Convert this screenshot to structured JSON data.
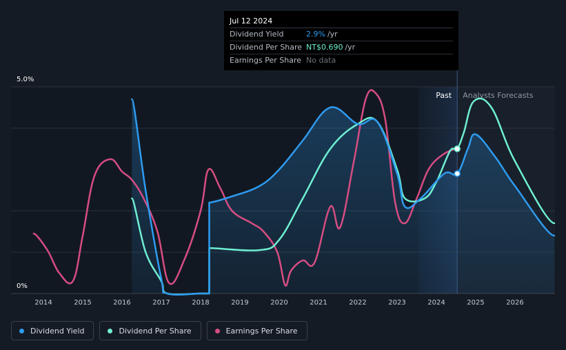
{
  "chart_data": {
    "type": "line",
    "title": "",
    "xlabel": "",
    "ylabel": "",
    "x_ticks": [
      "2014",
      "2015",
      "2016",
      "2017",
      "2018",
      "2019",
      "2020",
      "2021",
      "2022",
      "2023",
      "2024",
      "2025",
      "2026"
    ],
    "xlim": [
      2013.6,
      2027.0
    ],
    "y_ticks": [
      "0%",
      "5.0%"
    ],
    "ylim": [
      0,
      5.0
    ],
    "past_label": "Past",
    "forecast_label": "Analysts Forecasts",
    "forecast_start": 2024.53,
    "series": [
      {
        "name": "Dividend Yield",
        "color": "#2e9bf0",
        "x": [
          2016.25,
          2016.6,
          2017.0,
          2017.15,
          2018.0,
          2018.22,
          2018.22,
          2018.8,
          2019.5,
          2020.0,
          2020.6,
          2021.3,
          2022.0,
          2022.5,
          2023.0,
          2023.2,
          2023.6,
          2024.2,
          2024.53,
          2024.8,
          2025.0,
          2025.5,
          2026.0,
          2027.0
        ],
        "y": [
          4.7,
          2.5,
          0.35,
          0.0,
          0.0,
          0.0,
          2.2,
          2.35,
          2.6,
          3.0,
          3.7,
          4.5,
          4.1,
          4.15,
          2.9,
          2.1,
          2.3,
          2.9,
          2.9,
          3.5,
          3.85,
          3.3,
          2.6,
          1.4
        ]
      },
      {
        "name": "Dividend Per Share",
        "color": "#6ff0d2",
        "x": [
          2016.25,
          2016.6,
          2017.0,
          2017.15,
          2018.0,
          2018.22,
          2018.22,
          2019.5,
          2020.0,
          2020.6,
          2021.3,
          2022.0,
          2022.5,
          2023.0,
          2023.2,
          2023.7,
          2024.0,
          2024.35,
          2024.53,
          2024.7,
          2024.95,
          2025.4,
          2026.0,
          2027.0
        ],
        "y": [
          2.3,
          1.0,
          0.3,
          0.0,
          0.0,
          0.0,
          1.1,
          1.05,
          1.3,
          2.3,
          3.5,
          4.1,
          4.15,
          3.0,
          2.3,
          2.3,
          2.7,
          3.45,
          3.5,
          3.9,
          4.65,
          4.5,
          3.2,
          1.7
        ]
      },
      {
        "name": "Earnings Per Share",
        "color": "#d64d82",
        "x": [
          2013.75,
          2014.1,
          2014.4,
          2014.75,
          2015.0,
          2015.3,
          2015.7,
          2016.0,
          2016.25,
          2016.55,
          2016.9,
          2017.2,
          2017.6,
          2018.0,
          2018.2,
          2018.5,
          2018.8,
          2019.3,
          2019.6,
          2019.95,
          2020.15,
          2020.3,
          2020.6,
          2020.9,
          2021.3,
          2021.55,
          2021.9,
          2022.2,
          2022.45,
          2022.7,
          2022.95,
          2023.2,
          2023.5,
          2023.8,
          2024.15,
          2024.53
        ],
        "y": [
          1.45,
          1.05,
          0.5,
          0.3,
          1.4,
          2.85,
          3.25,
          2.95,
          2.75,
          2.3,
          1.5,
          0.25,
          0.85,
          2.0,
          3.0,
          2.55,
          2.0,
          1.7,
          1.5,
          1.0,
          0.2,
          0.55,
          0.8,
          0.75,
          2.1,
          1.6,
          3.2,
          4.7,
          4.85,
          4.2,
          2.2,
          1.7,
          2.3,
          3.0,
          3.35,
          3.5
        ]
      }
    ],
    "tooltip": {
      "date": "Jul 12 2024",
      "rows": [
        {
          "label": "Dividend Yield",
          "value": "2.9%",
          "unit": "/yr"
        },
        {
          "label": "Dividend Per Share",
          "value": "NT$0.690",
          "unit": "/yr"
        },
        {
          "label": "Earnings Per Share",
          "value": "No data"
        }
      ]
    }
  },
  "legend": [
    {
      "label": "Dividend Yield",
      "color": "#2e9bf0"
    },
    {
      "label": "Dividend Per Share",
      "color": "#6ff0d2"
    },
    {
      "label": "Earnings Per Share",
      "color": "#d64d82"
    }
  ]
}
